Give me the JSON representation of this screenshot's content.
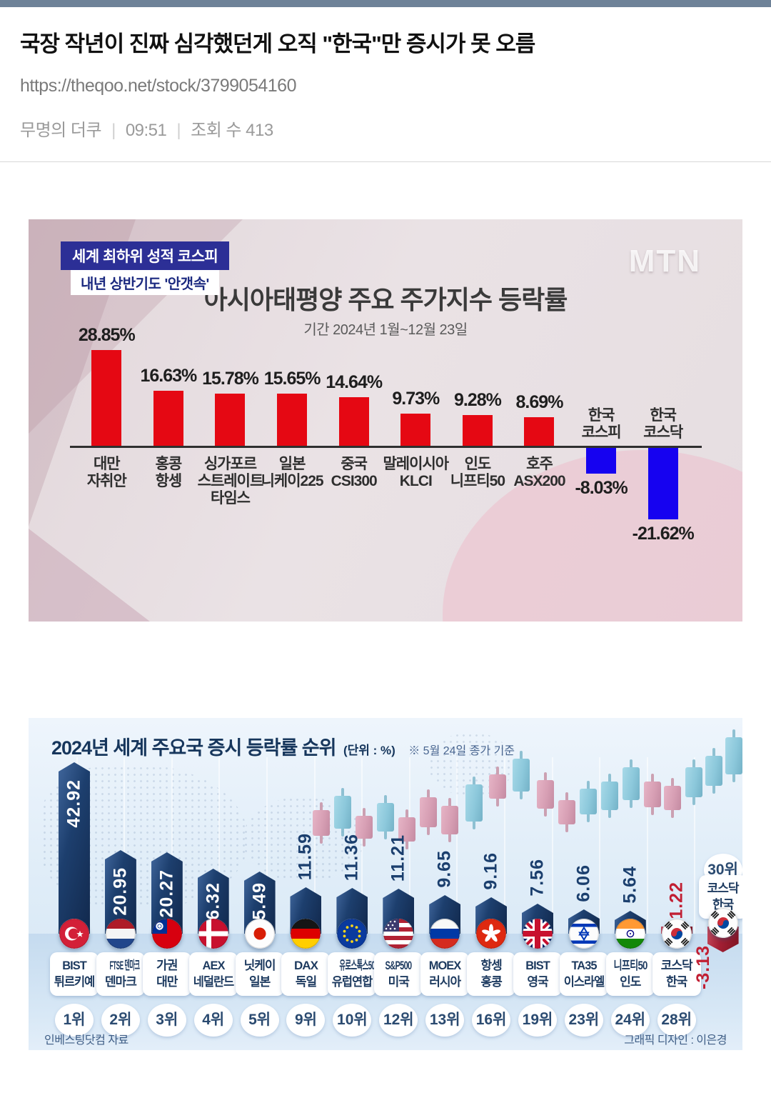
{
  "page": {
    "title": "국장 작년이 진짜 심각했던게 오직 \"한국\"만 증시가 못 오름",
    "url": "https://theqoo.net/stock/3799054160",
    "author": "무명의 더쿠",
    "time": "09:51",
    "views_label": "조회 수 413",
    "meta_separator": "|"
  },
  "chart_data": [
    {
      "type": "bar",
      "badges": [
        "세계 최하위 성적 코스피",
        "내년 상반기도 '안갯속'"
      ],
      "logo": "MTN",
      "title": "아시아태평양 주요 주가지수 등락률",
      "subtitle": "기간 2024년 1월~12월 23일",
      "categories": [
        [
          "대만",
          "자취안"
        ],
        [
          "홍콩",
          "항셍"
        ],
        [
          "싱가포르",
          "스트레이트",
          "타임스"
        ],
        [
          "일본",
          "니케이225"
        ],
        [
          "중국",
          "CSI300"
        ],
        [
          "말레이시아",
          "KLCI"
        ],
        [
          "인도",
          "니프티50"
        ],
        [
          "호주",
          "ASX200"
        ],
        [
          "한국",
          "코스피"
        ],
        [
          "한국",
          "코스닥"
        ]
      ],
      "values": [
        28.85,
        16.63,
        15.78,
        15.65,
        14.64,
        9.73,
        9.28,
        8.69,
        -8.03,
        -21.62
      ],
      "value_labels": [
        "28.85%",
        "16.63%",
        "15.78%",
        "15.65%",
        "14.64%",
        "9.73%",
        "9.28%",
        "8.69%",
        "-8.03%",
        "-21.62%"
      ],
      "positive_color": "#e50813",
      "negative_color": "#1602f0",
      "legend_position": "none",
      "grid": false
    },
    {
      "type": "bar",
      "title": "2024년 세계 주요국 증시 등락률 순위",
      "unit_label": "(단위 : %)",
      "note": "※ 5월 24일 종가 기준",
      "source_note": "인베스팅닷컴 자료",
      "credit": "그래픽 디자인 : 이은경",
      "bar_color": "#1d3f6e",
      "highlight_color": "#a31f33",
      "bars": [
        {
          "index_name": "BIST",
          "country": "튀르키예",
          "rank": "1위",
          "value": 42.92,
          "value_label": "42.92",
          "flag": "turkey",
          "highlight": false
        },
        {
          "index_name": "FTSE 덴마크",
          "country": "덴마크",
          "rank": "2위",
          "value": 20.95,
          "value_label": "20.95",
          "flag": "netherlands",
          "highlight": false
        },
        {
          "index_name": "가권",
          "country": "대만",
          "rank": "3위",
          "value": 20.27,
          "value_label": "20.27",
          "flag": "taiwan",
          "highlight": false
        },
        {
          "index_name": "AEX",
          "country": "네덜란드",
          "rank": "4위",
          "value": 16.32,
          "value_label": "16.32",
          "flag": "denmark",
          "highlight": false
        },
        {
          "index_name": "닛케이",
          "country": "일본",
          "rank": "5위",
          "value": 15.49,
          "value_label": "15.49",
          "flag": "japan",
          "highlight": false
        },
        {
          "index_name": "DAX",
          "country": "독일",
          "rank": "9위",
          "value": 11.59,
          "value_label": "11.59",
          "flag": "germany",
          "highlight": false
        },
        {
          "index_name": "유로스톡스50",
          "country": "유럽연합",
          "rank": "10위",
          "value": 11.36,
          "value_label": "11.36",
          "flag": "eu",
          "highlight": false
        },
        {
          "index_name": "S&P500",
          "country": "미국",
          "rank": "12위",
          "value": 11.21,
          "value_label": "11.21",
          "flag": "usa",
          "highlight": false
        },
        {
          "index_name": "MOEX",
          "country": "러시아",
          "rank": "13위",
          "value": 9.65,
          "value_label": "9.65",
          "flag": "russia",
          "highlight": false
        },
        {
          "index_name": "항셍",
          "country": "홍콩",
          "rank": "16위",
          "value": 9.16,
          "value_label": "9.16",
          "flag": "hongkong",
          "highlight": false
        },
        {
          "index_name": "BIST",
          "country": "영국",
          "rank": "19위",
          "value": 7.56,
          "value_label": "7.56",
          "flag": "uk",
          "highlight": false
        },
        {
          "index_name": "TA35",
          "country": "이스라엘",
          "rank": "23위",
          "value": 6.06,
          "value_label": "6.06",
          "flag": "israel",
          "highlight": false
        },
        {
          "index_name": "니프티50",
          "country": "인도",
          "rank": "24위",
          "value": 5.64,
          "value_label": "5.64",
          "flag": "india",
          "highlight": false
        },
        {
          "index_name": "코스닥",
          "country": "한국",
          "rank": "28위",
          "value": 1.22,
          "value_label": "1.22",
          "flag": "korea",
          "highlight": true
        },
        {
          "index_name": "코스닥",
          "country": "한국",
          "rank": "30위",
          "value": -3.13,
          "value_label": "-3.13",
          "flag": "korea",
          "highlight": true
        }
      ]
    }
  ]
}
